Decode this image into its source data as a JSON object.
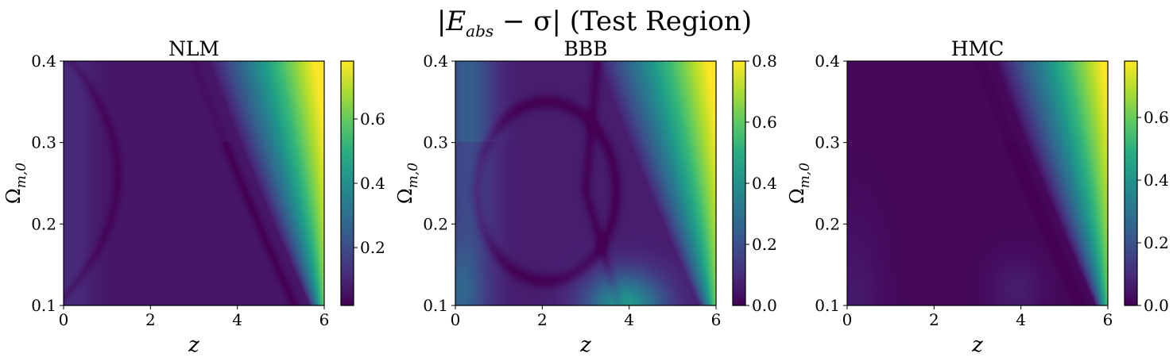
{
  "figure": {
    "suptitle_main": "|E",
    "suptitle_sub": "abs",
    "suptitle_rest": " − σ| (Test Region)"
  },
  "chart_data": [
    {
      "type": "heatmap",
      "title": "NLM",
      "xlabel": "z",
      "ylabel_main": "Ω",
      "ylabel_sub": "m,0",
      "xlim": [
        0,
        6
      ],
      "ylim": [
        0.1,
        0.4
      ],
      "xticks": [
        "0",
        "2",
        "4",
        "6"
      ],
      "yticks": [
        "0.1",
        "0.2",
        "0.3",
        "0.4"
      ],
      "colorbar": {
        "min": 0.02,
        "max": 0.78,
        "ticks": [
          "0.2",
          "0.4",
          "0.6"
        ],
        "colormap": "viridis"
      }
    },
    {
      "type": "heatmap",
      "title": "BBB",
      "xlabel": "z",
      "ylabel_main": "Ω",
      "ylabel_sub": "m,0",
      "xlim": [
        0,
        6
      ],
      "ylim": [
        0.1,
        0.4
      ],
      "xticks": [
        "0",
        "2",
        "4",
        "6"
      ],
      "yticks": [
        "0.1",
        "0.2",
        "0.3",
        "0.4"
      ],
      "colorbar": {
        "min": 0.0,
        "max": 0.8,
        "ticks": [
          "0.0",
          "0.2",
          "0.4",
          "0.6",
          "0.8"
        ],
        "colormap": "viridis"
      }
    },
    {
      "type": "heatmap",
      "title": "HMC",
      "xlabel": "z",
      "ylabel_main": "Ω",
      "ylabel_sub": "m,0",
      "xlim": [
        0,
        6
      ],
      "ylim": [
        0.1,
        0.4
      ],
      "xticks": [
        "0",
        "2",
        "4",
        "6"
      ],
      "yticks": [
        "0.1",
        "0.2",
        "0.3",
        "0.4"
      ],
      "colorbar": {
        "min": 0.0,
        "max": 0.78,
        "ticks": [
          "0.0",
          "0.2",
          "0.4",
          "0.6"
        ],
        "colormap": "viridis"
      }
    }
  ]
}
